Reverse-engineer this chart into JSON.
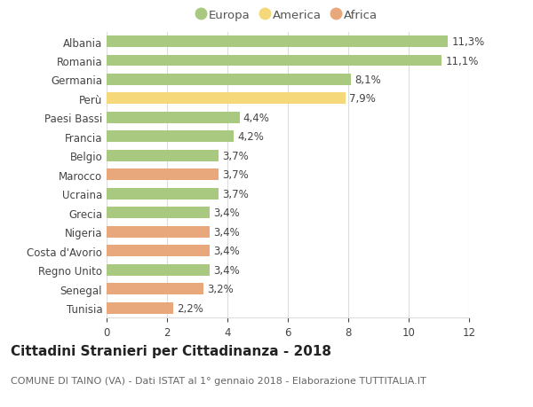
{
  "categories": [
    "Albania",
    "Romania",
    "Germania",
    "Perù",
    "Paesi Bassi",
    "Francia",
    "Belgio",
    "Marocco",
    "Ucraina",
    "Grecia",
    "Nigeria",
    "Costa d'Avorio",
    "Regno Unito",
    "Senegal",
    "Tunisia"
  ],
  "values": [
    11.3,
    11.1,
    8.1,
    7.9,
    4.4,
    4.2,
    3.7,
    3.7,
    3.7,
    3.4,
    3.4,
    3.4,
    3.4,
    3.2,
    2.2
  ],
  "labels": [
    "11,3%",
    "11,1%",
    "8,1%",
    "7,9%",
    "4,4%",
    "4,2%",
    "3,7%",
    "3,7%",
    "3,7%",
    "3,4%",
    "3,4%",
    "3,4%",
    "3,4%",
    "3,2%",
    "2,2%"
  ],
  "continents": [
    "Europa",
    "Europa",
    "Europa",
    "America",
    "Europa",
    "Europa",
    "Europa",
    "Africa",
    "Europa",
    "Europa",
    "Africa",
    "Africa",
    "Europa",
    "Africa",
    "Africa"
  ],
  "colors": {
    "Europa": "#a8c97f",
    "America": "#f5d87a",
    "Africa": "#e8a87c"
  },
  "legend_order": [
    "Europa",
    "America",
    "Africa"
  ],
  "legend_colors": [
    "#a8c97f",
    "#f5d87a",
    "#e8a87c"
  ],
  "title": "Cittadini Stranieri per Cittadinanza - 2018",
  "subtitle": "COMUNE DI TAINO (VA) - Dati ISTAT al 1° gennaio 2018 - Elaborazione TUTTITALIA.IT",
  "xlim": [
    0,
    12
  ],
  "xticks": [
    0,
    2,
    4,
    6,
    8,
    10,
    12
  ],
  "background_color": "#ffffff",
  "grid_color": "#dddddd",
  "bar_height": 0.6,
  "label_fontsize": 8.5,
  "tick_fontsize": 8.5,
  "legend_fontsize": 9.5,
  "title_fontsize": 11,
  "subtitle_fontsize": 8
}
